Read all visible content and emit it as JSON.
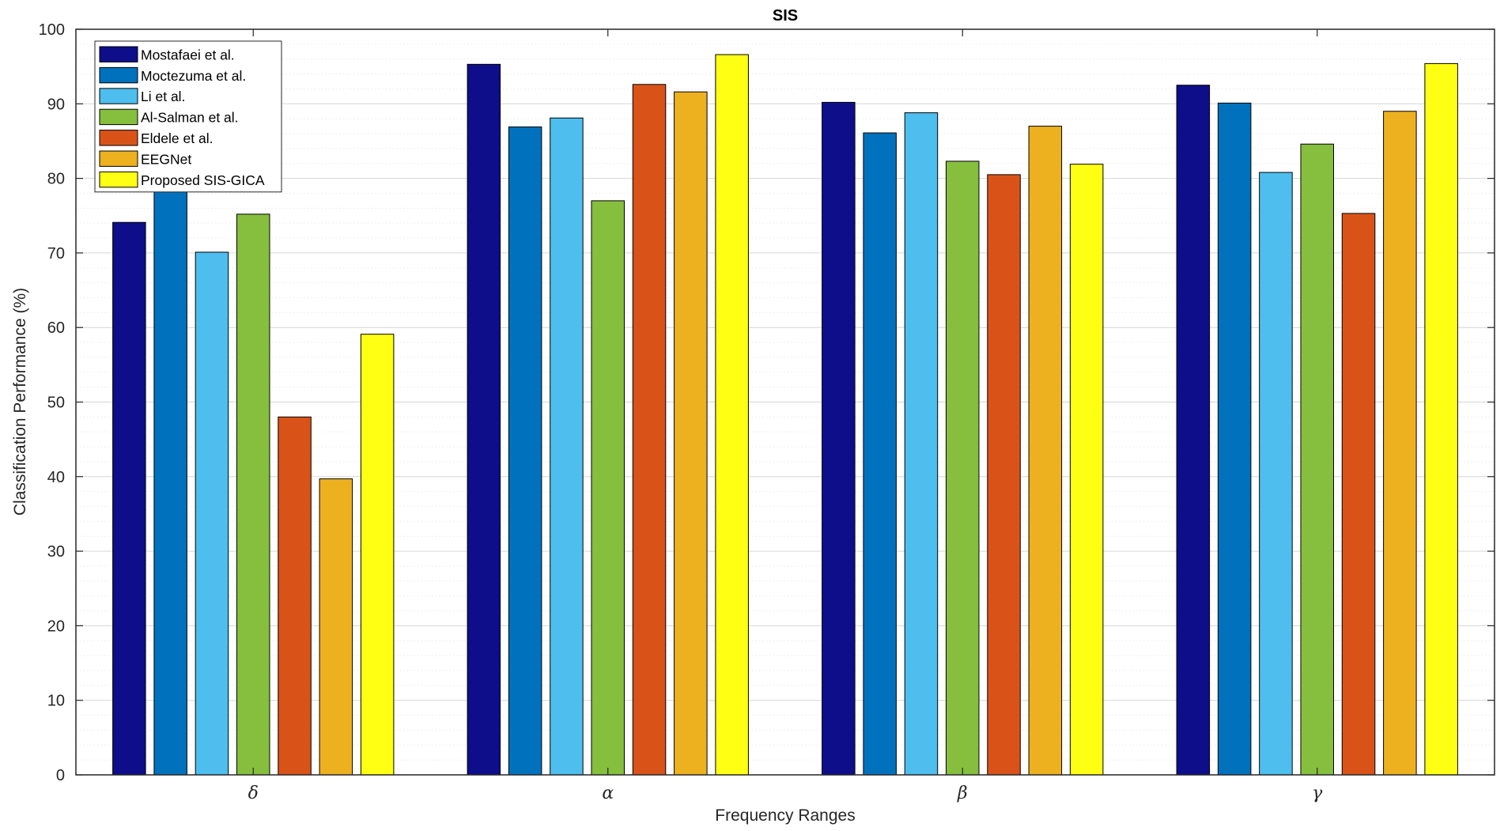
{
  "chart_data": {
    "type": "bar",
    "title": "SIS",
    "xlabel": "Frequency Ranges",
    "ylabel": "Classification Performance (%)",
    "categories": [
      "δ",
      "α",
      "β",
      "γ"
    ],
    "ylim": [
      0,
      100
    ],
    "yticks": [
      0,
      10,
      20,
      30,
      40,
      50,
      60,
      70,
      80,
      90,
      100
    ],
    "grid": true,
    "minor_grid": true,
    "legend_position": "top-left",
    "series": [
      {
        "name": "Mostafaei et al.",
        "color": "#0E0E8A",
        "values": [
          74.1,
          95.3,
          90.2,
          92.5
        ]
      },
      {
        "name": "Moctezuma et al.",
        "color": "#0072BD",
        "values": [
          78.7,
          86.9,
          86.1,
          90.1
        ]
      },
      {
        "name": "Li et al.",
        "color": "#4DBEEE",
        "values": [
          70.1,
          88.1,
          88.8,
          80.8
        ]
      },
      {
        "name": "Al-Salman et al.",
        "color": "#86BE3E",
        "values": [
          75.2,
          77.0,
          82.3,
          84.6
        ]
      },
      {
        "name": "Eldele et al.",
        "color": "#D95319",
        "values": [
          48.0,
          92.6,
          80.5,
          75.3
        ]
      },
      {
        "name": "EEGNet",
        "color": "#EDB120",
        "values": [
          39.7,
          91.6,
          87.0,
          89.0
        ]
      },
      {
        "name": "Proposed SIS-GICA",
        "color": "#FFFF14",
        "values": [
          59.1,
          96.6,
          81.9,
          95.4
        ]
      }
    ]
  }
}
